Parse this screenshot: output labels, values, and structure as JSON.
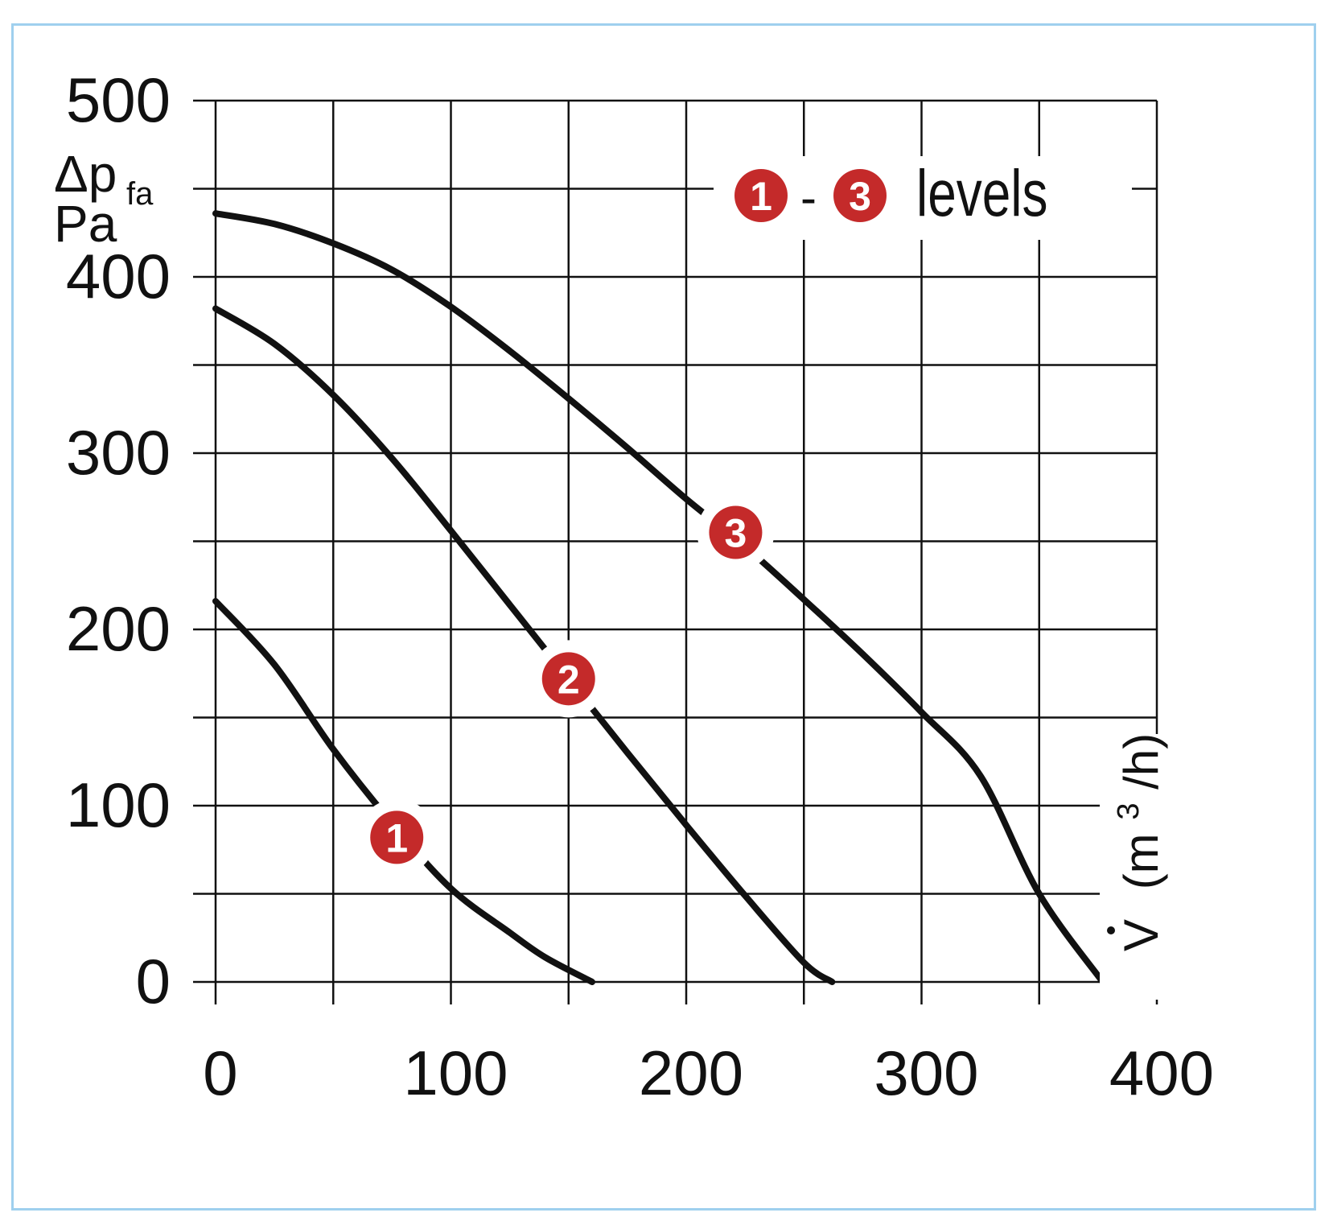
{
  "chart_data": {
    "type": "line",
    "title": "",
    "ylabel": "Δp",
    "ylabel_sub": "fa",
    "yunit": "Pa",
    "xlabel_prefix": "V",
    "xlabel_unit_a": "(m",
    "xlabel_unit_sup": "3",
    "xlabel_unit_b": "/h)",
    "xlim": [
      0,
      400
    ],
    "ylim": [
      0,
      500
    ],
    "xticks": [
      "0",
      "100",
      "200",
      "300",
      "400"
    ],
    "yticks": [
      "0",
      "100",
      "200",
      "300",
      "400",
      "500"
    ],
    "grid": true,
    "legend": {
      "from": "1",
      "to": "3",
      "separator": "-",
      "text": "levels"
    },
    "series": [
      {
        "name": "1",
        "marker_x": 77,
        "marker_y": 82,
        "points": [
          [
            0,
            216
          ],
          [
            25,
            180
          ],
          [
            50,
            132
          ],
          [
            75,
            90
          ],
          [
            100,
            53
          ],
          [
            125,
            28
          ],
          [
            140,
            14
          ],
          [
            160,
            0
          ]
        ]
      },
      {
        "name": "2",
        "marker_x": 150,
        "marker_y": 172,
        "points": [
          [
            0,
            382
          ],
          [
            25,
            362
          ],
          [
            50,
            333
          ],
          [
            75,
            297
          ],
          [
            100,
            256
          ],
          [
            125,
            214
          ],
          [
            150,
            172
          ],
          [
            175,
            130
          ],
          [
            200,
            89
          ],
          [
            225,
            49
          ],
          [
            250,
            11
          ],
          [
            262,
            0
          ]
        ]
      },
      {
        "name": "3",
        "marker_x": 221,
        "marker_y": 255,
        "points": [
          [
            0,
            436
          ],
          [
            25,
            430
          ],
          [
            50,
            419
          ],
          [
            75,
            404
          ],
          [
            100,
            383
          ],
          [
            125,
            358
          ],
          [
            150,
            331
          ],
          [
            175,
            303
          ],
          [
            200,
            274
          ],
          [
            225,
            247
          ],
          [
            250,
            217
          ],
          [
            275,
            186
          ],
          [
            300,
            153
          ],
          [
            325,
            117
          ],
          [
            350,
            50
          ],
          [
            377,
            0
          ]
        ]
      }
    ],
    "colors": {
      "curve": "#111111",
      "grid": "#111111",
      "marker": "#c42a2a",
      "marker_text": "#ffffff",
      "border": "#9fd0ee"
    }
  }
}
